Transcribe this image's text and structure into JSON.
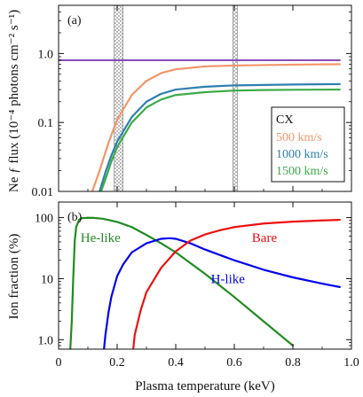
{
  "chart_data": [
    {
      "type": "line",
      "panel_label": "(a)",
      "ylabel": "Ne ƒ flux (10⁻⁴ photons cm⁻² s⁻¹)",
      "yscale": "log",
      "xlim": [
        0,
        1.0
      ],
      "ylim": [
        0.01,
        5.0
      ],
      "yticks": [
        0.01,
        0.1,
        1.0
      ],
      "ytick_labels": [
        "0.01",
        "0.1",
        "1.0"
      ],
      "xtick_labels_shown": false,
      "grid": false,
      "hatched_bands": [
        [
          0.19,
          0.22
        ],
        [
          0.595,
          0.61
        ]
      ],
      "legend": {
        "title": "CX",
        "placement": "lower-right",
        "entries": [
          {
            "label": "500 km/s",
            "color": "#f4956a"
          },
          {
            "label": "1000 km/s",
            "color": "#2f7fb0"
          },
          {
            "label": "1500 km/s",
            "color": "#3daa48"
          }
        ]
      },
      "series": [
        {
          "color": "#8d4fb7",
          "x": [
            0.0,
            0.2,
            0.4,
            0.6,
            0.8,
            0.96
          ],
          "y": [
            0.8,
            0.8,
            0.8,
            0.8,
            0.8,
            0.8
          ]
        },
        {
          "name": "500 km/s",
          "color": "#f4956a",
          "x": [
            0.115,
            0.14,
            0.17,
            0.2,
            0.25,
            0.3,
            0.35,
            0.4,
            0.5,
            0.6,
            0.7,
            0.8,
            0.96
          ],
          "y": [
            0.01,
            0.02,
            0.05,
            0.11,
            0.25,
            0.4,
            0.52,
            0.59,
            0.65,
            0.67,
            0.68,
            0.69,
            0.7
          ]
        },
        {
          "name": "1000 km/s",
          "color": "#2f7fb0",
          "x": [
            0.14,
            0.16,
            0.18,
            0.2,
            0.25,
            0.3,
            0.35,
            0.4,
            0.5,
            0.6,
            0.7,
            0.8,
            0.96
          ],
          "y": [
            0.01,
            0.019,
            0.033,
            0.053,
            0.12,
            0.2,
            0.26,
            0.3,
            0.33,
            0.345,
            0.35,
            0.355,
            0.36
          ]
        },
        {
          "name": "1500 km/s",
          "color": "#3daa48",
          "x": [
            0.145,
            0.16,
            0.18,
            0.2,
            0.25,
            0.3,
            0.35,
            0.4,
            0.5,
            0.6,
            0.7,
            0.8,
            0.96
          ],
          "y": [
            0.01,
            0.015,
            0.027,
            0.044,
            0.1,
            0.165,
            0.215,
            0.25,
            0.275,
            0.29,
            0.295,
            0.298,
            0.3
          ]
        }
      ]
    },
    {
      "type": "line",
      "panel_label": "(b)",
      "xlabel": "Plasma temperature (keV)",
      "ylabel": "Ion fraction (%)",
      "yscale": "log",
      "xlim": [
        0,
        1.0
      ],
      "ylim": [
        0.7,
        180
      ],
      "xticks": [
        0,
        0.2,
        0.4,
        0.6,
        0.8,
        1.0
      ],
      "xtick_labels": [
        "0",
        "0.2",
        "0.4",
        "0.6",
        "0.8",
        "1.0"
      ],
      "yticks": [
        1,
        10,
        100
      ],
      "ytick_labels": [
        "1.0",
        "10",
        "100"
      ],
      "grid": false,
      "series": [
        {
          "name": "He-like",
          "color": "#228b22",
          "x": [
            0.04,
            0.045,
            0.05,
            0.055,
            0.06,
            0.07,
            0.08,
            0.1,
            0.12,
            0.15,
            0.2,
            0.25,
            0.3,
            0.35,
            0.4,
            0.5,
            0.6,
            0.7,
            0.8
          ],
          "y": [
            0.7,
            2,
            10,
            40,
            70,
            92,
            98,
            99.5,
            99,
            96,
            85,
            70,
            52,
            38,
            27,
            12,
            5,
            2,
            0.8
          ]
        },
        {
          "name": "H-like",
          "color": "#0000ee",
          "x": [
            0.155,
            0.16,
            0.17,
            0.18,
            0.2,
            0.22,
            0.25,
            0.3,
            0.35,
            0.38,
            0.4,
            0.45,
            0.5,
            0.6,
            0.7,
            0.8,
            0.9,
            0.96
          ],
          "y": [
            0.7,
            1.2,
            2.7,
            5,
            11,
            17,
            27,
            38,
            45,
            46,
            45,
            38,
            30,
            20,
            14,
            10.5,
            8.3,
            7.3
          ]
        },
        {
          "name": "Bare",
          "color": "#ee1111",
          "x": [
            0.255,
            0.26,
            0.28,
            0.3,
            0.35,
            0.4,
            0.45,
            0.5,
            0.55,
            0.6,
            0.7,
            0.8,
            0.9,
            0.96
          ],
          "y": [
            0.7,
            1.2,
            3,
            6,
            15,
            28,
            42,
            53,
            62,
            70,
            80,
            86,
            90,
            92
          ]
        }
      ],
      "curve_labels": [
        {
          "text": "He-like",
          "x": 0.075,
          "y": 40,
          "color": "#228b22"
        },
        {
          "text": "H-like",
          "x": 0.52,
          "y": 8.5,
          "color": "#0000ee"
        },
        {
          "text": "Bare",
          "x": 0.66,
          "y": 40,
          "color": "#ee1111"
        }
      ]
    }
  ]
}
